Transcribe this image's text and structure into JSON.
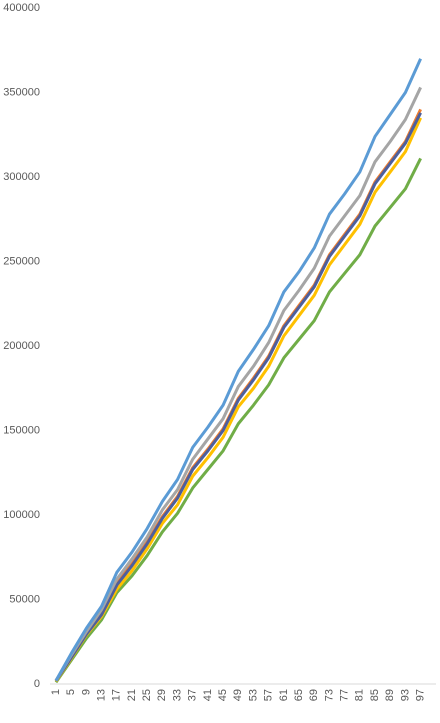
{
  "chart_data": {
    "type": "line",
    "x": [
      1,
      5,
      9,
      13,
      17,
      21,
      25,
      29,
      33,
      37,
      41,
      45,
      49,
      53,
      57,
      61,
      65,
      69,
      73,
      77,
      81,
      85,
      89,
      93,
      97
    ],
    "xlim": [
      1,
      100
    ],
    "ylim": [
      0,
      400000
    ],
    "yticks": [
      0,
      50000,
      100000,
      150000,
      200000,
      250000,
      300000,
      350000,
      400000
    ],
    "series": [
      {
        "color": "#70ad47",
        "values": [
          1000,
          14000,
          27000,
          38000,
          54000,
          64000,
          76000,
          90000,
          101000,
          116000,
          127000,
          138000,
          154000,
          165000,
          177000,
          193000,
          204000,
          215000,
          232000,
          243000,
          254000,
          271000,
          282000,
          293000,
          311000
        ]
      },
      {
        "color": "#ffc000",
        "values": [
          1500,
          15000,
          29000,
          40000,
          56000,
          67000,
          80000,
          95000,
          106000,
          123000,
          134000,
          146000,
          164000,
          175000,
          188000,
          206000,
          218000,
          230000,
          248000,
          260000,
          272000,
          291000,
          303000,
          315000,
          335000
        ]
      },
      {
        "color": "#ed7d31",
        "values": [
          2000,
          16000,
          30000,
          42000,
          60000,
          71000,
          84000,
          99000,
          111000,
          128000,
          139000,
          151000,
          169000,
          181000,
          194000,
          212000,
          224000,
          236000,
          254000,
          266000,
          278000,
          297000,
          309000,
          321000,
          340000
        ]
      },
      {
        "color": "#4e5f9c",
        "values": [
          1800,
          15500,
          29500,
          41000,
          58500,
          70000,
          83000,
          98000,
          110000,
          127000,
          138000,
          150000,
          168000,
          180000,
          193000,
          211000,
          223000,
          235000,
          253000,
          265000,
          277000,
          296000,
          308000,
          320000,
          338000
        ]
      },
      {
        "color": "#a5a5a5",
        "values": [
          2000,
          17000,
          31000,
          44000,
          62000,
          74000,
          87000,
          103000,
          115000,
          133000,
          145000,
          157000,
          176000,
          188000,
          202000,
          221000,
          233000,
          246000,
          265000,
          277000,
          289000,
          309000,
          321000,
          334000,
          353000
        ]
      },
      {
        "color": "#5b9bd5",
        "values": [
          2000,
          18000,
          33000,
          46000,
          66000,
          78000,
          92000,
          108000,
          121000,
          140000,
          152000,
          165000,
          185000,
          198000,
          212000,
          232000,
          244000,
          258000,
          278000,
          290000,
          303000,
          324000,
          337000,
          350000,
          370000
        ]
      }
    ]
  }
}
